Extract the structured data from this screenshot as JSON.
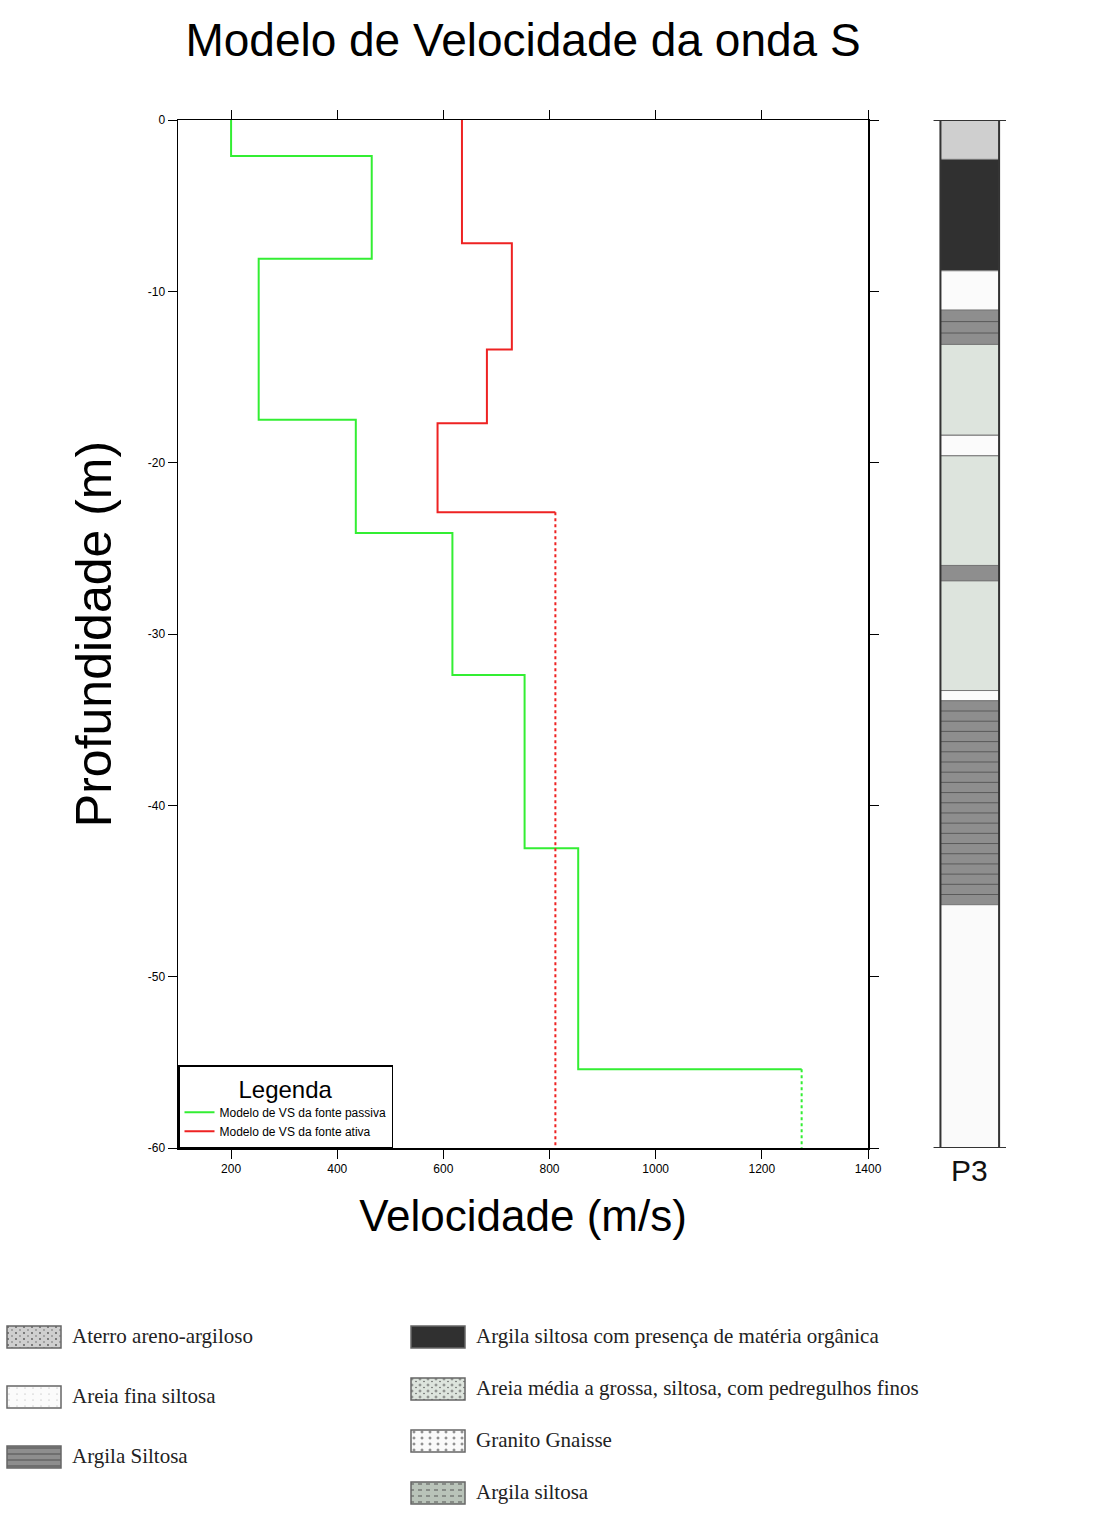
{
  "chart_data": {
    "type": "line",
    "title": "Modelo de Velocidade da onda S",
    "x_label": "Velocidade (m/s)",
    "y_label": "Profundidade (m)",
    "xlim": [
      100,
      1400
    ],
    "xticks": [
      200,
      400,
      600,
      800,
      1000,
      1200,
      1400
    ],
    "ylim": [
      -60,
      0
    ],
    "yticks": [
      -60,
      -50,
      -40,
      -30,
      -20,
      -10,
      0
    ],
    "grid": false,
    "legend": "lower left",
    "legend_title": "Legenda",
    "series": [
      {
        "name": "Modelo de VS da fonte passiva",
        "color": "#33ee33",
        "line_style": "solid",
        "x": [
          200,
          200,
          465,
          465,
          252,
          252,
          435,
          435,
          617,
          617,
          753,
          753,
          854,
          854,
          1275
        ],
        "y": [
          0,
          -2.1,
          -2.1,
          -8.1,
          -8.1,
          -17.5,
          -17.5,
          -24.1,
          -24.1,
          -32.4,
          -32.4,
          -42.5,
          -42.5,
          -55.4,
          -55.4
        ]
      },
      {
        "color": "#33ee33",
        "line_style": "dotted",
        "x": [
          1275,
          1275
        ],
        "y": [
          -55.4,
          -60
        ]
      },
      {
        "name": "Modelo de VS da fonte ativa",
        "color": "#ee2222",
        "line_style": "solid",
        "x": [
          635,
          635,
          729,
          729,
          682,
          682,
          589,
          589,
          811
        ],
        "y": [
          0,
          -7.2,
          -7.2,
          -13.4,
          -13.4,
          -17.7,
          -17.7,
          -22.9,
          -22.9
        ]
      },
      {
        "color": "#ee2222",
        "line_style": "dotted",
        "x": [
          811,
          811
        ],
        "y": [
          -22.9,
          -60
        ]
      }
    ],
    "column": {
      "label": "P3",
      "layers": [
        {
          "top": 0,
          "bottom": -2.3,
          "lithology": "Aterro areno-argiloso"
        },
        {
          "top": -2.3,
          "bottom": -8.8,
          "lithology": "Argila siltosa com presença de matéria orgânica"
        },
        {
          "top": -8.8,
          "bottom": -11.1,
          "lithology": "Areia fina siltosa"
        },
        {
          "top": -11.1,
          "bottom": -13.1,
          "lithology": "Argila Siltosa"
        },
        {
          "top": -13.1,
          "bottom": -18.4,
          "lithology": "Areia média a grossa, siltosa, com pedregulhos finos"
        },
        {
          "top": -18.4,
          "bottom": -19.6,
          "lithology": "Areia fina siltosa"
        },
        {
          "top": -19.6,
          "bottom": -26,
          "lithology": "Areia média a grossa, siltosa, com pedregulhos finos"
        },
        {
          "top": -26,
          "bottom": -26.9,
          "lithology": "Argila Siltosa"
        },
        {
          "top": -26.9,
          "bottom": -33.3,
          "lithology": "Areia média a grossa, siltosa, com pedregulhos finos"
        },
        {
          "top": -33.3,
          "bottom": -33.9,
          "lithology": "Areia fina siltosa"
        },
        {
          "top": -33.9,
          "bottom": -45.8,
          "lithology": "Argila Siltosa"
        },
        {
          "top": -45.8,
          "bottom": -60,
          "lithology": "Granito Gnaisse"
        }
      ]
    },
    "lithology_legend": [
      [
        "Aterro areno-argiloso",
        "Areia fina siltosa",
        "Argila Siltosa"
      ],
      [
        "Argila siltosa com presença de matéria orgânica",
        "Areia média a grossa, siltosa, com pedregulhos finos",
        "Granito Gnaisse",
        "Argila siltosa"
      ]
    ]
  }
}
